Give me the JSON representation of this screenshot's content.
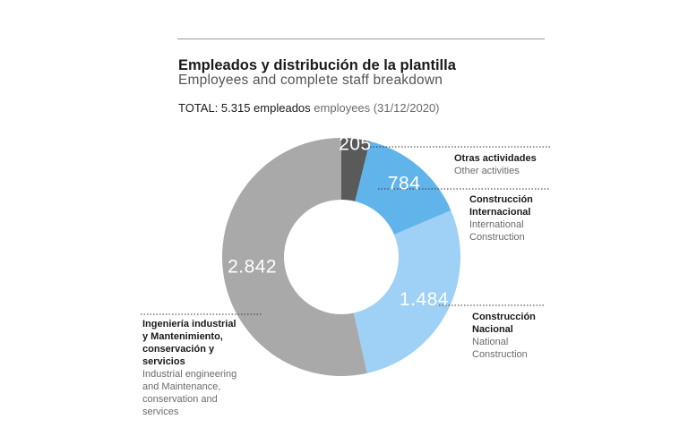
{
  "header": {
    "title": "Empleados y distribución de la plantilla",
    "subtitle": "Employees and complete staff breakdown",
    "total_es": "TOTAL: 5.315 empleados",
    "total_en": "employees (31/12/2020)"
  },
  "colors": {
    "otras": "#5a5a5a",
    "internacional": "#60b4ea",
    "nacional": "#9fd0f5",
    "industrial": "#a9a9a9",
    "leader": "#333333"
  },
  "chart_data": {
    "type": "pie",
    "title": "Empleados y distribución de la plantilla",
    "subtitle": "Employees and complete staff breakdown",
    "total": 5315,
    "total_label": "TOTAL: 5.315 empleados employees (31/12/2020)",
    "categories": [
      "Otras actividades / Other activities",
      "Construcción Internacional / International Construction",
      "Construcción Nacional / National Construction",
      "Ingeniería industrial y Mantenimiento, conservación y servicios / Industrial engineering and Maintenance, conservation and services"
    ],
    "values": [
      205,
      784,
      1484,
      2842
    ],
    "value_labels": [
      "205",
      "784",
      "1.484",
      "2.842"
    ],
    "donut": true,
    "legend": "outside-labels"
  },
  "categories": {
    "otras": {
      "es": "Otras actividades",
      "en": "Other activities"
    },
    "internacional": {
      "es": "Construcción\nInternacional",
      "en": "International\nConstruction"
    },
    "nacional": {
      "es": "Construcción\nNacional",
      "en": "National\nConstruction"
    },
    "industrial": {
      "es": "Ingeniería industrial\ny Mantenimiento,\nconservación y\nservicios",
      "en": "Industrial engineering\nand Maintenance,\nconservation and\nservices"
    }
  }
}
